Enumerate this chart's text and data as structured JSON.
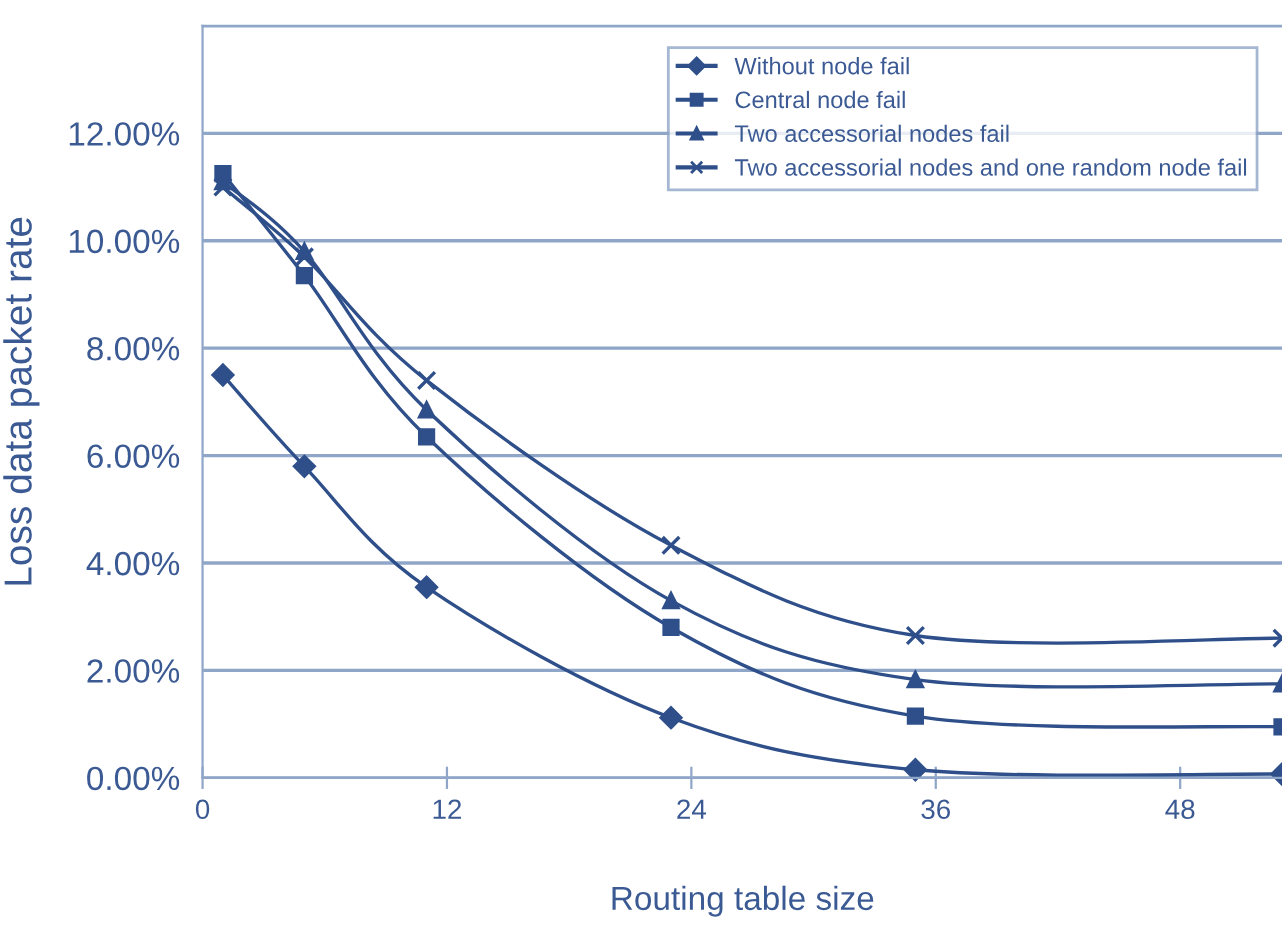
{
  "chart_data": {
    "type": "line",
    "xlabel": "Routing table size",
    "ylabel": "Loss data packet rate",
    "xlim": [
      0,
      53
    ],
    "xticks": [
      0,
      12,
      24,
      36,
      48
    ],
    "ylim": [
      0,
      14
    ],
    "yticks": [
      {
        "value": 0,
        "label": "0.00%"
      },
      {
        "value": 2,
        "label": "2.00%"
      },
      {
        "value": 4,
        "label": "4.00%"
      },
      {
        "value": 6,
        "label": "6.00%"
      },
      {
        "value": 8,
        "label": "8.00%"
      },
      {
        "value": 10,
        "label": "10.00%"
      },
      {
        "value": 12,
        "label": "12.00%"
      },
      {
        "value": 14,
        "label": null
      }
    ],
    "grid": "y",
    "legend": "top right",
    "line_style": "solid",
    "x": [
      1,
      5,
      11,
      23,
      35,
      53
    ],
    "series": [
      {
        "name": "Without node fail",
        "color": "#2e4f8a",
        "marker": "diamond",
        "values": [
          7.5,
          5.8,
          3.55,
          1.12,
          0.15,
          0.07
        ]
      },
      {
        "name": "Central node fail",
        "color": "#2e4f8a",
        "marker": "square",
        "values": [
          11.25,
          9.35,
          6.35,
          2.8,
          1.15,
          0.95
        ]
      },
      {
        "name": "Two accessorial nodes fail",
        "color": "#2e4f8a",
        "marker": "triangle",
        "values": [
          11.1,
          9.8,
          6.85,
          3.3,
          1.83,
          1.75
        ]
      },
      {
        "name": "Two accessorial nodes and one random node fail",
        "color": "#2e4f8a",
        "marker": "cross",
        "values": [
          11.0,
          9.7,
          7.4,
          4.33,
          2.65,
          2.6
        ]
      }
    ]
  }
}
